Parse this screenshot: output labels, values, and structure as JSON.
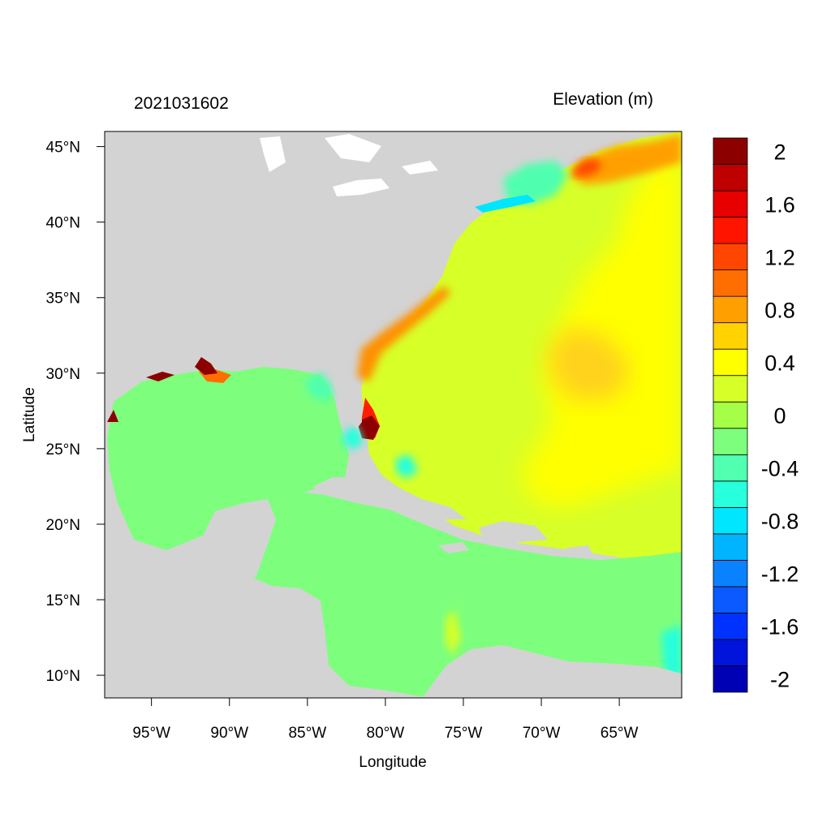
{
  "title_left": "2021031602",
  "title_right": "Elevation (m)",
  "x_axis_label": "Longitude",
  "y_axis_label": "Latitude",
  "chart_data": {
    "type": "heatmap",
    "xlim": [
      -98,
      -61
    ],
    "ylim": [
      8.5,
      46
    ],
    "x_ticks": [
      {
        "value": -95,
        "label": "95°W"
      },
      {
        "value": -90,
        "label": "90°W"
      },
      {
        "value": -85,
        "label": "85°W"
      },
      {
        "value": -80,
        "label": "80°W"
      },
      {
        "value": -75,
        "label": "75°W"
      },
      {
        "value": -70,
        "label": "70°W"
      },
      {
        "value": -65,
        "label": "65°W"
      }
    ],
    "y_ticks": [
      {
        "value": 45,
        "label": "45°N"
      },
      {
        "value": 40,
        "label": "40°N"
      },
      {
        "value": 35,
        "label": "35°N"
      },
      {
        "value": 30,
        "label": "30°N"
      },
      {
        "value": 25,
        "label": "25°N"
      },
      {
        "value": 20,
        "label": "20°N"
      },
      {
        "value": 15,
        "label": "15°N"
      },
      {
        "value": 10,
        "label": "10°N"
      }
    ],
    "colorbar": {
      "colors": [
        "#0000b4",
        "#0014dc",
        "#0032ff",
        "#0a5aff",
        "#0a82ff",
        "#00b4ff",
        "#00e6ff",
        "#28ffdc",
        "#50ffaf",
        "#7dff7d",
        "#a5ff46",
        "#d7ff28",
        "#ffff00",
        "#ffd200",
        "#ffa000",
        "#ff6e00",
        "#ff4600",
        "#ff1400",
        "#e60000",
        "#be0000",
        "#8c0000"
      ],
      "labels": [
        {
          "index": 1,
          "label": "-2"
        },
        {
          "index": 3,
          "label": "-1.6"
        },
        {
          "index": 5,
          "label": "-1.2"
        },
        {
          "index": 7,
          "label": "-0.8"
        },
        {
          "index": 9,
          "label": "-0.4"
        },
        {
          "index": 11,
          "label": "0"
        },
        {
          "index": 13,
          "label": "0.4"
        },
        {
          "index": 15,
          "label": "0.8"
        },
        {
          "index": 17,
          "label": "1.2"
        },
        {
          "index": 19,
          "label": "1.6"
        },
        {
          "index": 21,
          "label": "2"
        }
      ]
    },
    "land_color": "#d3d3d3",
    "grid": false
  }
}
